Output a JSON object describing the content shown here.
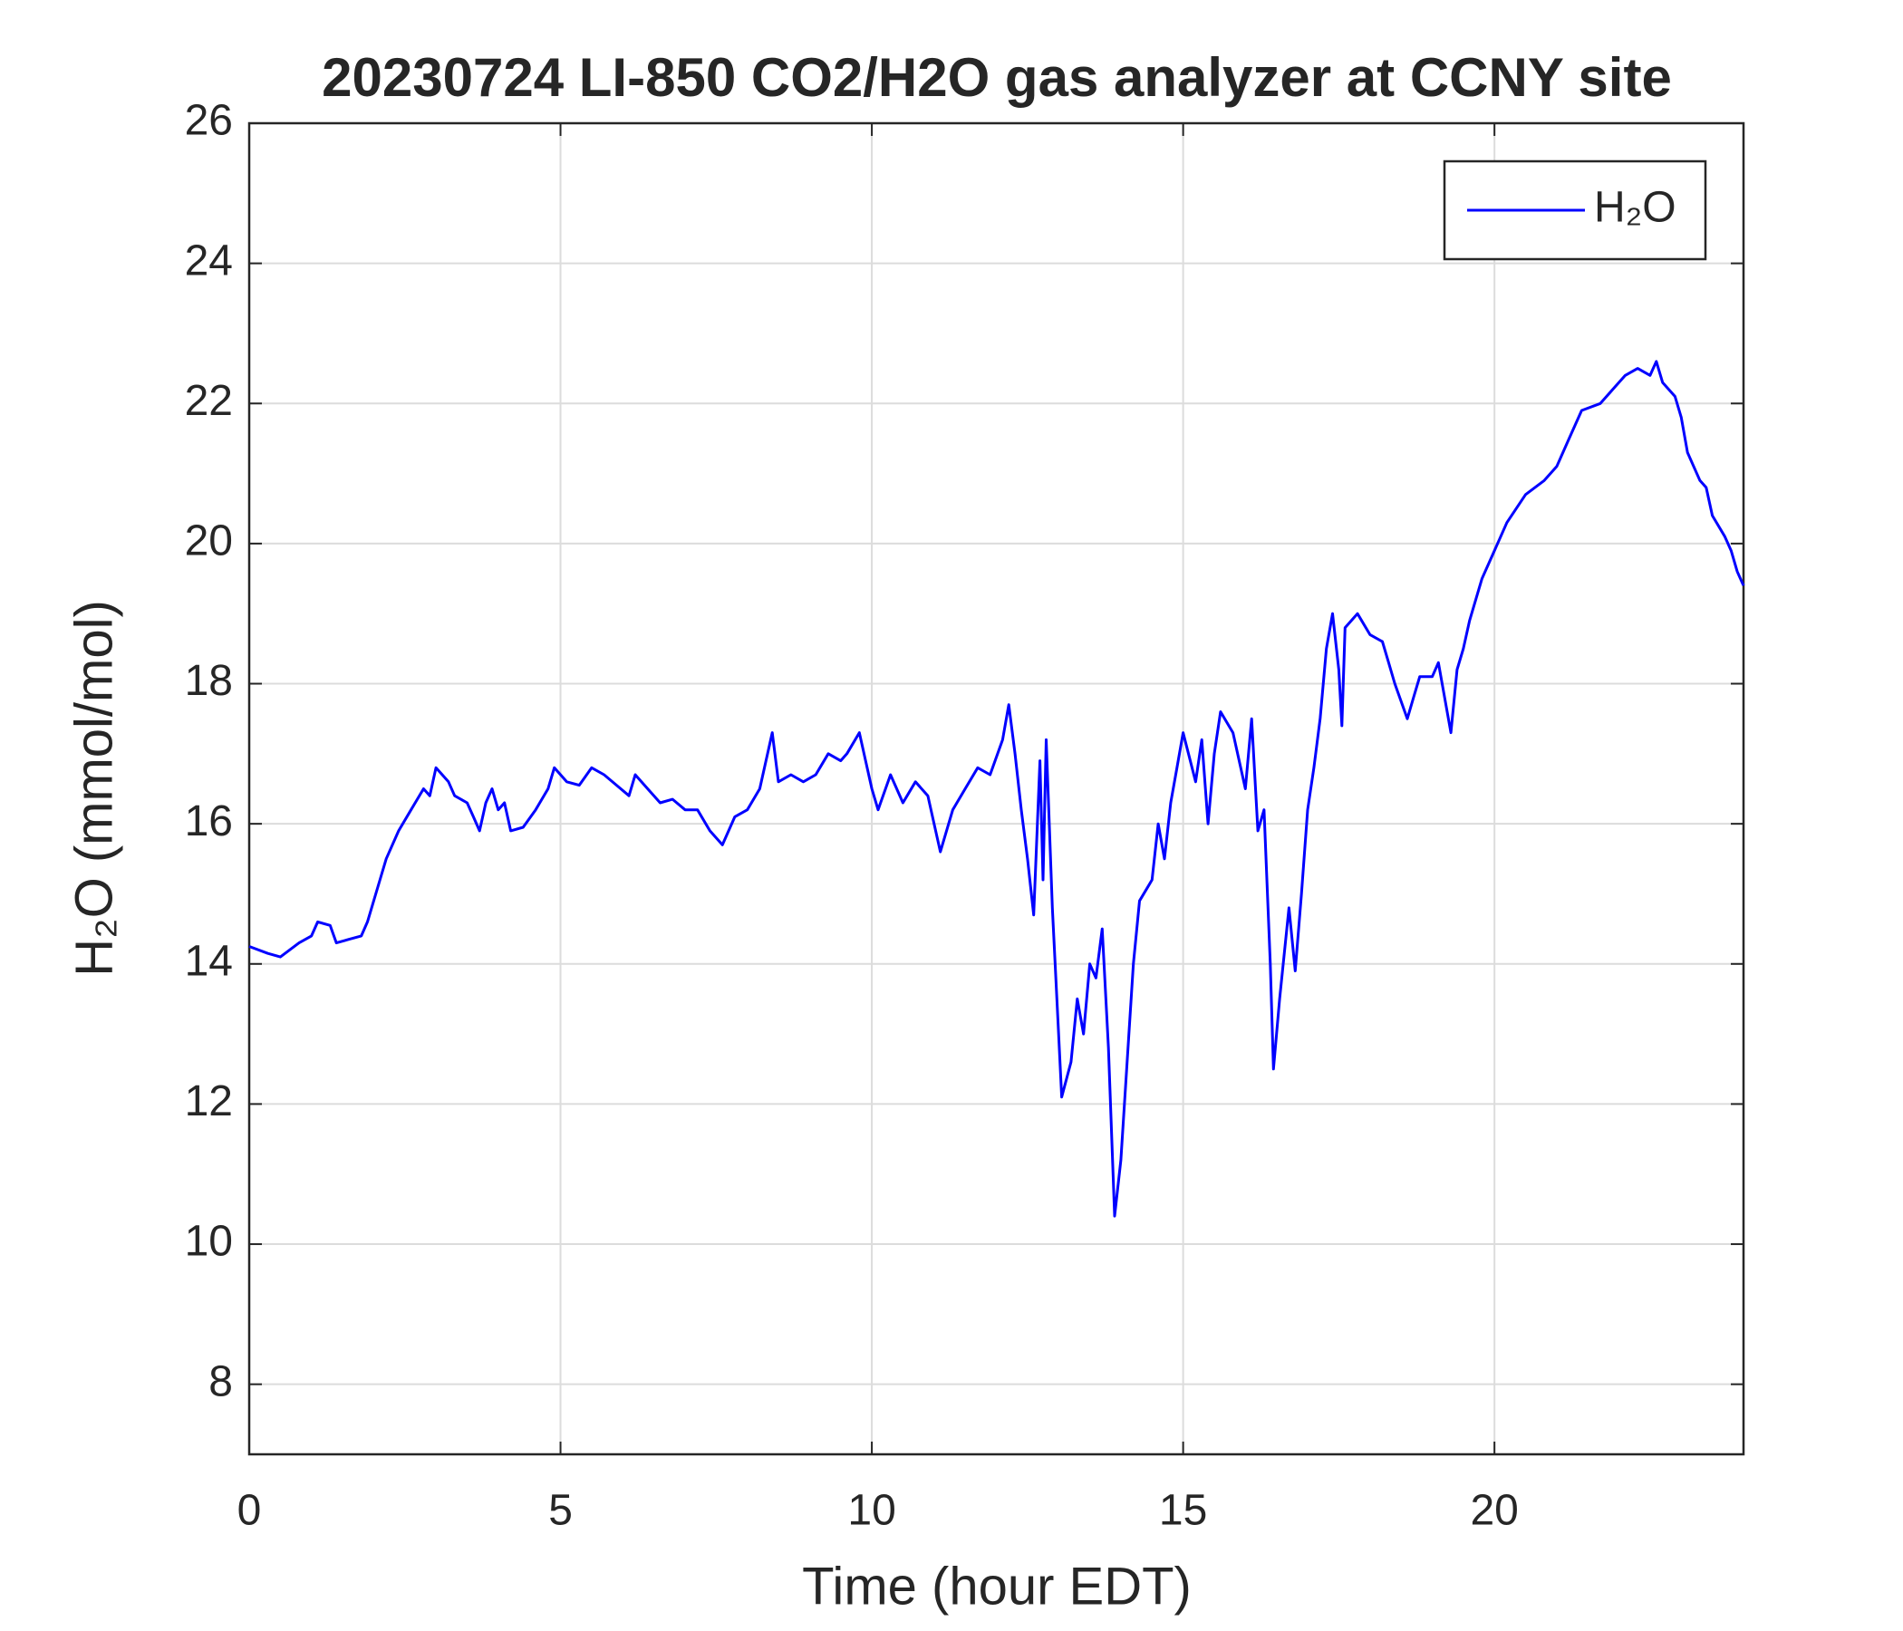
{
  "chart_data": {
    "type": "line",
    "title": "20230724 LI-850 CO2/H2O gas analyzer at CCNY site",
    "x_label": "Time (hour EDT)",
    "y_label": "H₂O (mmol/mol)",
    "xlim": [
      0,
      24
    ],
    "xticks": [
      0,
      5,
      10,
      15,
      20
    ],
    "ylim": [
      7,
      26
    ],
    "yticks": [
      8,
      10,
      12,
      14,
      16,
      18,
      20,
      22,
      24,
      26
    ],
    "grid": true,
    "legend": "upper right",
    "x": [
      0,
      0.3,
      0.5,
      0.8,
      1.0,
      1.1,
      1.3,
      1.4,
      1.6,
      1.8,
      1.9,
      2.0,
      2.1,
      2.2,
      2.4,
      2.6,
      2.8,
      2.9,
      3.0,
      3.2,
      3.3,
      3.5,
      3.6,
      3.7,
      3.8,
      3.9,
      4.0,
      4.1,
      4.2,
      4.4,
      4.6,
      4.8,
      4.9,
      5.1,
      5.3,
      5.5,
      5.7,
      5.9,
      6.1,
      6.2,
      6.4,
      6.6,
      6.8,
      7.0,
      7.2,
      7.4,
      7.6,
      7.8,
      8.0,
      8.2,
      8.4,
      8.5,
      8.7,
      8.9,
      9.1,
      9.3,
      9.5,
      9.6,
      9.8,
      9.9,
      10.0,
      10.1,
      10.3,
      10.5,
      10.7,
      10.9,
      11.0,
      11.1,
      11.3,
      11.5,
      11.7,
      11.9,
      12.1,
      12.2,
      12.3,
      12.4,
      12.5,
      12.6,
      12.7,
      12.75,
      12.8,
      12.9,
      13.0,
      13.05,
      13.2,
      13.3,
      13.4,
      13.5,
      13.6,
      13.7,
      13.8,
      13.9,
      14.0,
      14.1,
      14.2,
      14.3,
      14.5,
      14.6,
      14.7,
      14.8,
      14.9,
      15.0,
      15.2,
      15.3,
      15.4,
      15.5,
      15.6,
      15.8,
      16.0,
      16.1,
      16.2,
      16.3,
      16.4,
      16.45,
      16.55,
      16.7,
      16.8,
      16.9,
      17.0,
      17.1,
      17.2,
      17.3,
      17.4,
      17.5,
      17.55,
      17.6,
      17.8,
      18.0,
      18.2,
      18.3,
      18.4,
      18.6,
      18.7,
      18.8,
      19.0,
      19.1,
      19.3,
      19.4,
      19.5,
      19.6,
      19.8,
      20.0,
      20.2,
      20.5,
      20.8,
      21.0,
      21.2,
      21.4,
      21.7,
      21.9,
      22.1,
      22.3,
      22.5,
      22.6,
      22.7,
      22.9,
      23.0,
      23.1,
      23.3,
      23.4,
      23.5,
      23.7,
      23.8,
      23.9,
      24
    ],
    "series": [
      {
        "name": "H₂O",
        "color": "#0000ff",
        "values": [
          14.25,
          14.15,
          14.1,
          14.3,
          14.4,
          14.6,
          14.55,
          14.3,
          14.35,
          14.4,
          14.6,
          14.9,
          15.2,
          15.5,
          15.9,
          16.2,
          16.5,
          16.4,
          16.8,
          16.6,
          16.4,
          16.3,
          16.1,
          15.9,
          16.3,
          16.5,
          16.2,
          16.3,
          15.9,
          15.95,
          16.2,
          16.5,
          16.8,
          16.6,
          16.55,
          16.8,
          16.7,
          16.55,
          16.4,
          16.7,
          16.5,
          16.3,
          16.35,
          16.2,
          16.2,
          15.9,
          15.7,
          16.1,
          16.2,
          16.5,
          17.3,
          16.6,
          16.7,
          16.6,
          16.7,
          17.0,
          16.9,
          17.0,
          17.3,
          16.9,
          16.5,
          16.2,
          16.7,
          16.3,
          16.6,
          16.4,
          16.0,
          15.6,
          16.2,
          16.5,
          16.8,
          16.7,
          17.2,
          17.7,
          17.0,
          16.2,
          15.5,
          14.7,
          16.9,
          15.2,
          17.2,
          14.8,
          13.0,
          12.1,
          12.6,
          13.5,
          13.0,
          14.0,
          13.8,
          14.5,
          12.8,
          10.4,
          11.2,
          12.6,
          14.0,
          14.9,
          15.2,
          16.0,
          15.5,
          16.3,
          16.8,
          17.3,
          16.6,
          17.2,
          16.0,
          17.0,
          17.6,
          17.3,
          16.5,
          17.5,
          15.9,
          16.2,
          14.0,
          12.5,
          13.5,
          14.8,
          13.9,
          15.0,
          16.2,
          16.8,
          17.5,
          18.5,
          19.0,
          18.2,
          17.4,
          18.8,
          19.0,
          18.7,
          18.6,
          18.3,
          18.0,
          17.5,
          17.8,
          18.1,
          18.1,
          18.3,
          17.3,
          18.2,
          18.5,
          18.9,
          19.5,
          19.9,
          20.3,
          20.7,
          20.9,
          21.1,
          21.5,
          21.9,
          22.0,
          22.2,
          22.4,
          22.5,
          22.4,
          22.6,
          22.3,
          22.1,
          21.8,
          21.3,
          20.9,
          20.8,
          20.4,
          20.1,
          19.9,
          19.6,
          19.4
        ]
      }
    ]
  }
}
